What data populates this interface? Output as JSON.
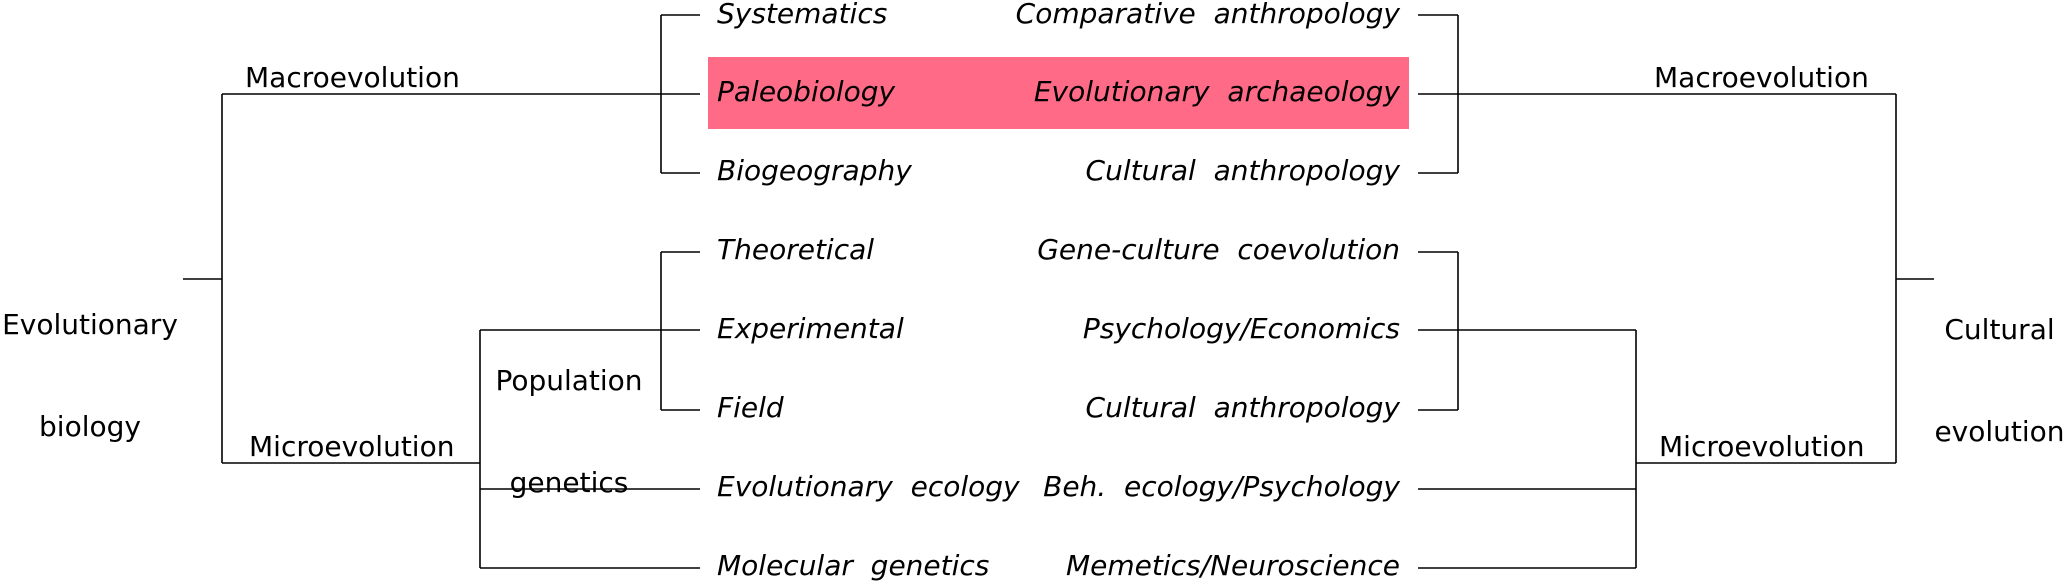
{
  "colors": {
    "highlight": "#ff6b87",
    "line": "#000000"
  },
  "left_tree": {
    "root": {
      "line1": "Evolutionary",
      "line2": "biology"
    },
    "macro": "Macroevolution",
    "micro": "Microevolution",
    "popgen": {
      "line1": "Population",
      "line2": "genetics"
    }
  },
  "right_tree": {
    "root": {
      "line1": "Cultural",
      "line2": "evolution"
    },
    "macro": "Macroevolution",
    "micro": "Microevolution"
  },
  "rows": [
    {
      "left": "Systematics",
      "right": "Comparative  anthropology"
    },
    {
      "left": "Paleobiology",
      "right": "Evolutionary  archaeology",
      "highlight": true
    },
    {
      "left": "Biogeography",
      "right": "Cultural  anthropology"
    },
    {
      "left": "Theoretical",
      "right": "Gene-culture  coevolution"
    },
    {
      "left": "Experimental",
      "right": "Psychology/Economics"
    },
    {
      "left": "Field",
      "right": "Cultural  anthropology"
    },
    {
      "left": "Evolutionary  ecology",
      "right": "Beh.  ecology/Psychology"
    },
    {
      "left": "Molecular  genetics",
      "right": "Memetics/Neuroscience"
    }
  ]
}
